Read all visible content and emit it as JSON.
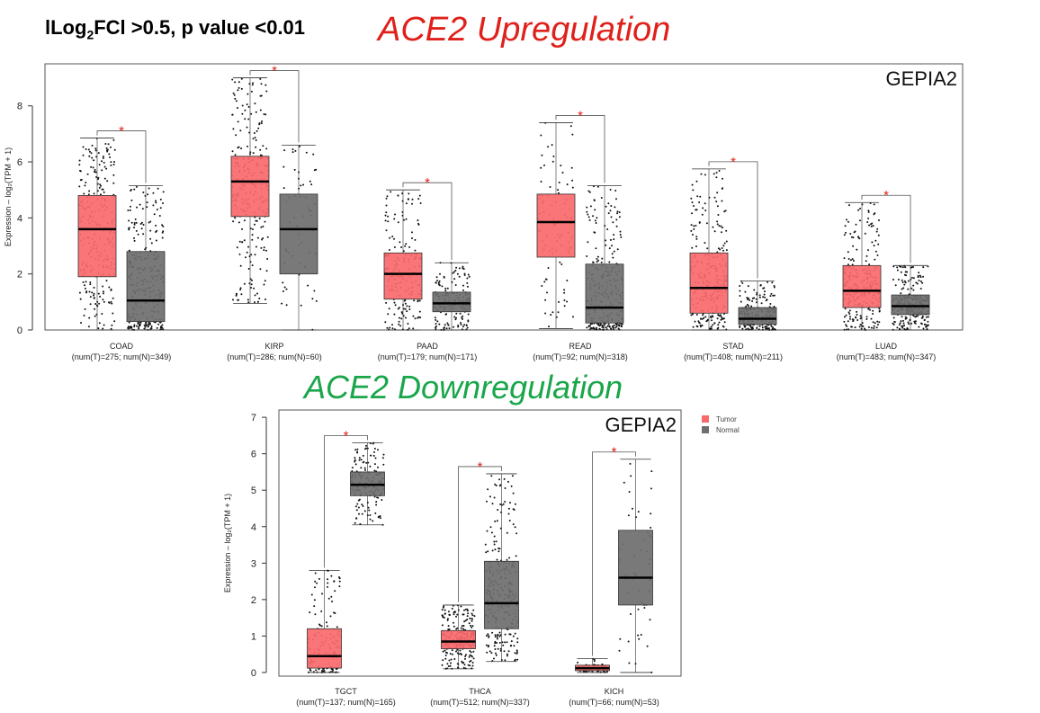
{
  "header": {
    "threshold_pre": "lLog",
    "threshold_sub": "2",
    "threshold_post": "FCl >0.5, p value <0.01",
    "title_up": "ACE2 Upregulation",
    "title_down": "ACE2 Downregulation"
  },
  "colors": {
    "tumor": "#f8696b",
    "normal": "#6e6e6e",
    "star": "#e0201a",
    "title_up": "#e0201a",
    "title_down": "#1aa64a"
  },
  "chart_data": [
    {
      "type": "boxplot",
      "watermark": "GEPIA2",
      "ylabel": "Expression – log₂(TPM + 1)",
      "ylim": [
        0,
        9.5
      ],
      "yticks": [
        0,
        2,
        4,
        6,
        8
      ],
      "legend": [
        "Tumor",
        "Normal"
      ],
      "legend_placement": "outside-top-right",
      "categories": [
        {
          "name": "COAD",
          "counts": "(num(T)=275; num(N)=349)",
          "tumor": {
            "q1": 1.9,
            "median": 3.6,
            "q3": 4.8,
            "min": 0.0,
            "max": 6.85,
            "n": 275
          },
          "normal": {
            "q1": 0.3,
            "median": 1.05,
            "q3": 2.8,
            "min": 0.0,
            "max": 5.15,
            "n": 349
          },
          "significant": true
        },
        {
          "name": "KIRP",
          "counts": "(num(T)=286; num(N)=60)",
          "tumor": {
            "q1": 4.05,
            "median": 5.3,
            "q3": 6.2,
            "min": 0.95,
            "max": 9.0,
            "n": 286
          },
          "normal": {
            "q1": 2.0,
            "median": 3.6,
            "q3": 4.85,
            "min": 0.0,
            "max": 6.6,
            "n": 60
          },
          "significant": true
        },
        {
          "name": "PAAD",
          "counts": "(num(T)=179; num(N)=171)",
          "tumor": {
            "q1": 1.1,
            "median": 2.0,
            "q3": 2.75,
            "min": 0.0,
            "max": 5.0,
            "n": 179
          },
          "normal": {
            "q1": 0.65,
            "median": 0.95,
            "q3": 1.35,
            "min": 0.0,
            "max": 2.4,
            "n": 171
          },
          "significant": true
        },
        {
          "name": "READ",
          "counts": "(num(T)=92; num(N)=318)",
          "tumor": {
            "q1": 2.6,
            "median": 3.85,
            "q3": 4.85,
            "min": 0.05,
            "max": 7.4,
            "n": 92
          },
          "normal": {
            "q1": 0.25,
            "median": 0.8,
            "q3": 2.35,
            "min": 0.0,
            "max": 5.15,
            "n": 318
          },
          "significant": true
        },
        {
          "name": "STAD",
          "counts": "(num(T)=408; num(N)=211)",
          "tumor": {
            "q1": 0.6,
            "median": 1.5,
            "q3": 2.75,
            "min": 0.0,
            "max": 5.75,
            "n": 408
          },
          "normal": {
            "q1": 0.2,
            "median": 0.4,
            "q3": 0.8,
            "min": 0.0,
            "max": 1.75,
            "n": 211
          },
          "significant": true
        },
        {
          "name": "LUAD",
          "counts": "(num(T)=483; num(N)=347)",
          "tumor": {
            "q1": 0.8,
            "median": 1.4,
            "q3": 2.3,
            "min": 0.0,
            "max": 4.55,
            "n": 483
          },
          "normal": {
            "q1": 0.55,
            "median": 0.85,
            "q3": 1.25,
            "min": 0.0,
            "max": 2.3,
            "n": 347
          },
          "significant": true
        }
      ]
    },
    {
      "type": "boxplot",
      "watermark": "GEPIA2",
      "ylabel": "Expression – log₂(TPM + 1)",
      "ylim": [
        -0.1,
        7.2
      ],
      "yticks": [
        0,
        1,
        2,
        3,
        4,
        5,
        6,
        7
      ],
      "legend": [
        "Tumor",
        "Normal"
      ],
      "legend_placement": "outside-top-right",
      "categories": [
        {
          "name": "TGCT",
          "counts": "(num(T)=137; num(N)=165)",
          "tumor": {
            "q1": 0.12,
            "median": 0.45,
            "q3": 1.2,
            "min": 0.0,
            "max": 2.8,
            "n": 137
          },
          "normal": {
            "q1": 4.85,
            "median": 5.15,
            "q3": 5.5,
            "min": 4.05,
            "max": 6.3,
            "n": 165
          },
          "significant": true
        },
        {
          "name": "THCA",
          "counts": "(num(T)=512; num(N)=337)",
          "tumor": {
            "q1": 0.65,
            "median": 0.85,
            "q3": 1.15,
            "min": 0.1,
            "max": 1.85,
            "n": 512
          },
          "normal": {
            "q1": 1.2,
            "median": 1.9,
            "q3": 3.05,
            "min": 0.3,
            "max": 5.45,
            "n": 337
          },
          "significant": true
        },
        {
          "name": "KICH",
          "counts": "(num(T)=66; num(N)=53)",
          "tumor": {
            "q1": 0.05,
            "median": 0.12,
            "q3": 0.2,
            "min": 0.0,
            "max": 0.38,
            "n": 66
          },
          "normal": {
            "q1": 1.85,
            "median": 2.6,
            "q3": 3.9,
            "min": 0.0,
            "max": 5.85,
            "n": 53
          },
          "significant": true
        }
      ]
    }
  ]
}
